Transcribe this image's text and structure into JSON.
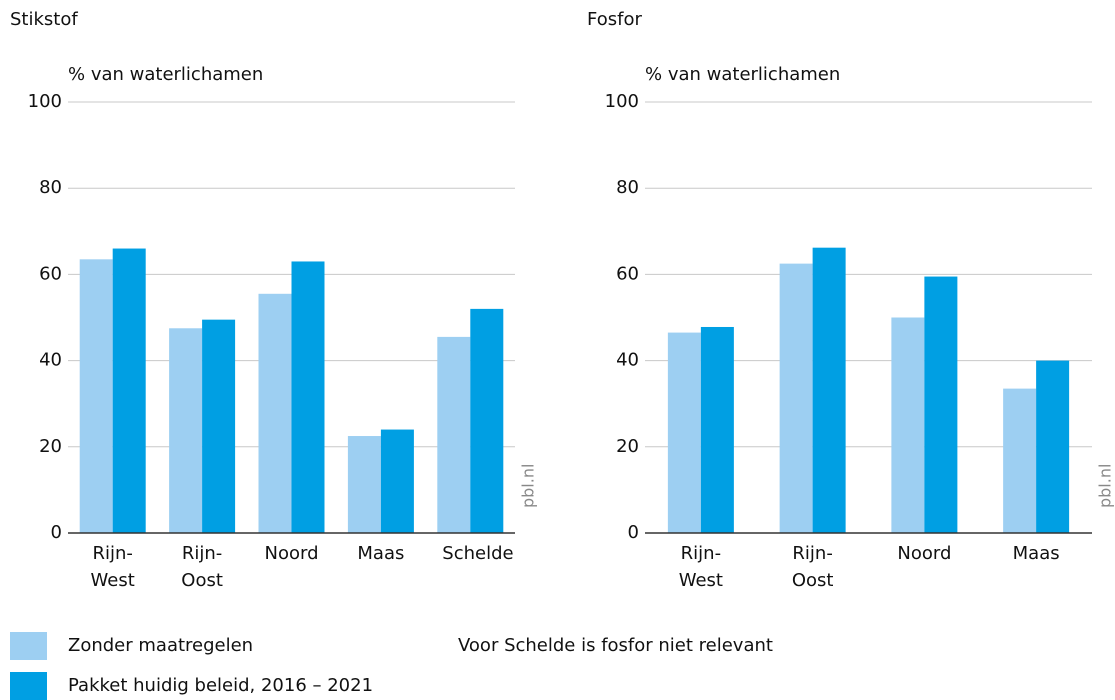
{
  "chart_data": [
    {
      "type": "bar",
      "title": "Stikstof",
      "ylabel": "% van waterlichamen",
      "source": "pbl.nl",
      "categories": [
        "Rijn-West",
        "Rijn-Oost",
        "Noord",
        "Maas",
        "Schelde"
      ],
      "series": [
        {
          "name": "Zonder maatregelen",
          "color": "#9dcff2",
          "values": [
            63.5,
            47.5,
            55.5,
            22.5,
            45.5
          ]
        },
        {
          "name": "Pakket huidig beleid, 2016 – 2021",
          "color": "#009fe3",
          "values": [
            66,
            49.5,
            63,
            24,
            52
          ]
        }
      ],
      "ylim": [
        0,
        100
      ],
      "yticks": [
        0,
        20,
        40,
        60,
        80,
        100
      ],
      "grid": true
    },
    {
      "type": "bar",
      "title": "Fosfor",
      "ylabel": "% van waterlichamen",
      "source": "pbl.nl",
      "categories": [
        "Rijn-West",
        "Rijn-Oost",
        "Noord",
        "Maas"
      ],
      "series": [
        {
          "name": "Zonder maatregelen",
          "color": "#9dcff2",
          "values": [
            46.5,
            62.5,
            50,
            33.5
          ]
        },
        {
          "name": "Pakket huidig beleid, 2016 – 2021",
          "color": "#009fe3",
          "values": [
            47.8,
            66.2,
            59.5,
            40
          ]
        }
      ],
      "ylim": [
        0,
        100
      ],
      "yticks": [
        0,
        20,
        40,
        60,
        80,
        100
      ],
      "grid": true
    }
  ],
  "note": "Voor Schelde is fosfor niet relevant"
}
